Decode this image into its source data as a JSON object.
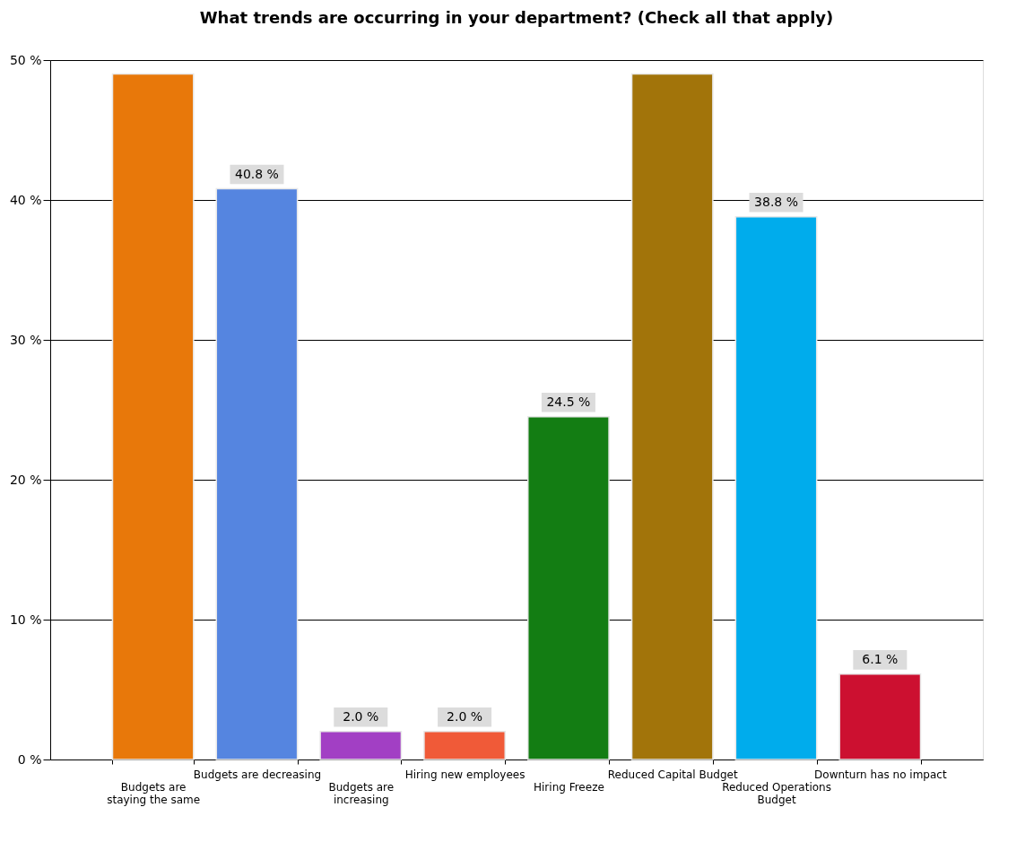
{
  "chart_data": {
    "type": "bar",
    "title": "What trends are occurring in your department? (Check all that apply)",
    "categories": [
      "Budgets are staying the same",
      "Budgets are decreasing",
      "Budgets are increasing",
      "Hiring new employees",
      "Hiring Freeze",
      "Reduced Capital Budget",
      "Reduced Operations Budget",
      "Downturn has no impact"
    ],
    "values": [
      49.0,
      40.8,
      2.0,
      2.0,
      24.5,
      49.0,
      38.8,
      6.1
    ],
    "value_labels": [
      null,
      "40.8 %",
      "2.0 %",
      "2.0 %",
      "24.5 %",
      null,
      "38.8 %",
      "6.1 %"
    ],
    "colors": [
      "#e8780a",
      "#5585e0",
      "#a23fc4",
      "#f05a38",
      "#137d13",
      "#a2740a",
      "#00acec",
      "#cc1030"
    ],
    "ylim": [
      0,
      50
    ],
    "yticks": [
      {
        "value": 0,
        "label": "0 %"
      },
      {
        "value": 10,
        "label": "10 %"
      },
      {
        "value": 20,
        "label": "20 %"
      },
      {
        "value": 30,
        "label": "30 %"
      },
      {
        "value": 40,
        "label": "40 %"
      },
      {
        "value": 50,
        "label": "50 %"
      }
    ],
    "grid": "y",
    "legend": false
  }
}
